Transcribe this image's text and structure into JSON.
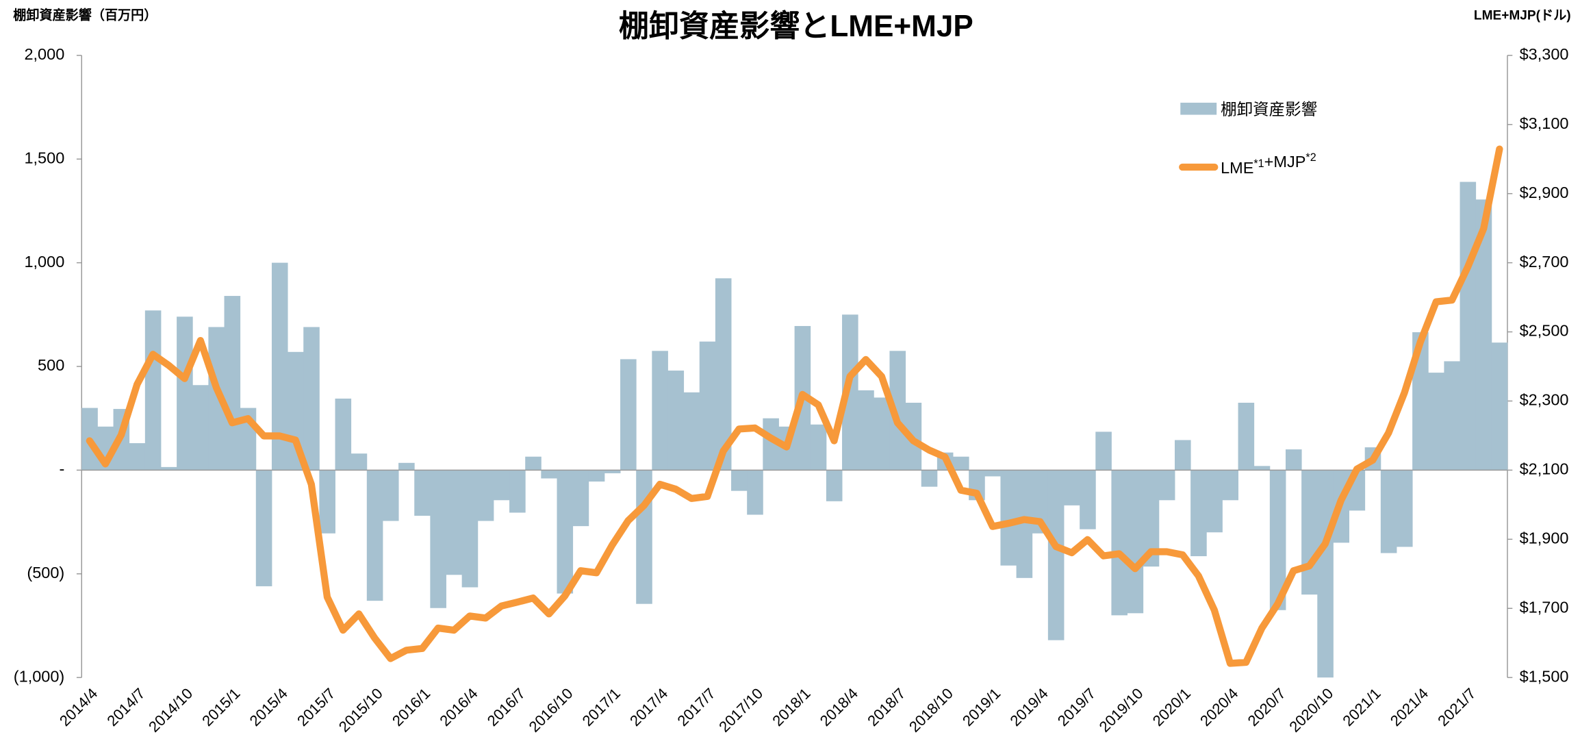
{
  "chart_data": {
    "type": "bar-line",
    "title": "棚卸資産影響とLME+MJP",
    "y_label": "棚卸資産影響（百万円）",
    "y2_label": "LME+MJP(ドル)",
    "legend": "upper right",
    "categories": [
      "2014/4",
      null,
      null,
      "2014/7",
      null,
      null,
      "2014/10",
      null,
      null,
      "2015/1",
      null,
      null,
      "2015/4",
      null,
      null,
      "2015/7",
      null,
      null,
      "2015/10",
      null,
      null,
      "2016/1",
      null,
      null,
      "2016/4",
      null,
      null,
      "2016/7",
      null,
      null,
      "2016/10",
      null,
      null,
      "2017/1",
      null,
      null,
      "2017/4",
      null,
      null,
      "2017/7",
      null,
      null,
      "2017/10",
      null,
      null,
      "2018/1",
      null,
      null,
      "2018/4",
      null,
      null,
      "2018/7",
      null,
      null,
      "2018/10",
      null,
      null,
      "2019/1",
      null,
      null,
      "2019/4",
      null,
      null,
      "2019/7",
      null,
      null,
      "2019/10",
      null,
      null,
      "2020/1",
      null,
      null,
      "2020/4",
      null,
      null,
      "2020/7",
      null,
      null,
      "2020/10",
      null,
      null,
      "2021/1",
      null,
      null,
      "2021/4",
      null,
      null,
      "2021/7",
      null,
      null
    ],
    "series": [
      {
        "name": "棚卸資産影響",
        "type": "bar",
        "color": "#a6c1d0",
        "values": [
          300,
          210,
          295,
          130,
          770,
          15,
          740,
          410,
          690,
          840,
          300,
          -560,
          1000,
          570,
          690,
          -305,
          345,
          80,
          -630,
          -245,
          35,
          -220,
          -665,
          -505,
          -565,
          -245,
          -145,
          -205,
          65,
          -40,
          -595,
          -270,
          -55,
          -15,
          535,
          -645,
          575,
          480,
          375,
          620,
          925,
          -100,
          -215,
          250,
          210,
          695,
          220,
          -150,
          750,
          385,
          350,
          575,
          325,
          -80,
          85,
          65,
          -145,
          -30,
          -460,
          -520,
          -305,
          -820,
          -170,
          -285,
          185,
          -700,
          -690,
          -465,
          -145,
          145,
          -415,
          -300,
          -145,
          325,
          20,
          -675,
          100,
          -600,
          -1000,
          -350,
          -195,
          110,
          -400,
          -370,
          665,
          470,
          525,
          1390,
          1305,
          615
        ]
      },
      {
        "name": "LME*1+MJP*2",
        "type": "line",
        "axis": "y2",
        "color": "#f7993a",
        "values": [
          2185,
          2118,
          2202,
          2348,
          2435,
          2403,
          2365,
          2475,
          2339,
          2237,
          2249,
          2199,
          2199,
          2187,
          2059,
          1733,
          1637,
          1684,
          1614,
          1555,
          1579,
          1584,
          1643,
          1637,
          1678,
          1672,
          1707,
          1718,
          1730,
          1684,
          1736,
          1809,
          1803,
          1884,
          1954,
          1998,
          2059,
          2045,
          2018,
          2024,
          2155,
          2219,
          2222,
          2193,
          2167,
          2319,
          2289,
          2185,
          2371,
          2420,
          2371,
          2237,
          2185,
          2158,
          2138,
          2042,
          2033,
          1937,
          1946,
          1957,
          1951,
          1879,
          1861,
          1899,
          1852,
          1858,
          1815,
          1864,
          1864,
          1855,
          1794,
          1695,
          1541,
          1544,
          1643,
          1713,
          1809,
          1823,
          1887,
          2013,
          2103,
          2129,
          2208,
          2324,
          2470,
          2587,
          2592,
          2688,
          2799,
          3029
        ]
      }
    ],
    "ylim": [
      -1000,
      2000
    ],
    "yticks": [
      {
        "value": 2000,
        "label": "2,000"
      },
      {
        "value": 1500,
        "label": "1,500"
      },
      {
        "value": 1000,
        "label": "1,000"
      },
      500,
      {
        "value": 0,
        "label": "-"
      },
      {
        "value": -500,
        "label": "(500)"
      },
      {
        "value": -1000,
        "label": "(1,000)"
      }
    ],
    "y2lim": [
      1500,
      3300
    ],
    "y2ticks": [
      {
        "value": 1500,
        "label": "$1,500"
      },
      {
        "value": 1700,
        "label": "$1,700"
      },
      {
        "value": 1900,
        "label": "$1,900"
      },
      {
        "value": 2100,
        "label": "$2,100"
      },
      {
        "value": 2300,
        "label": "$2,300"
      },
      {
        "value": 2500,
        "label": "$2,500"
      },
      {
        "value": 2700,
        "label": "$2,700"
      },
      {
        "value": 2900,
        "label": "$2,900"
      },
      {
        "value": 3100,
        "label": "$3,100"
      },
      {
        "value": 3300,
        "label": "$3,300"
      }
    ]
  }
}
